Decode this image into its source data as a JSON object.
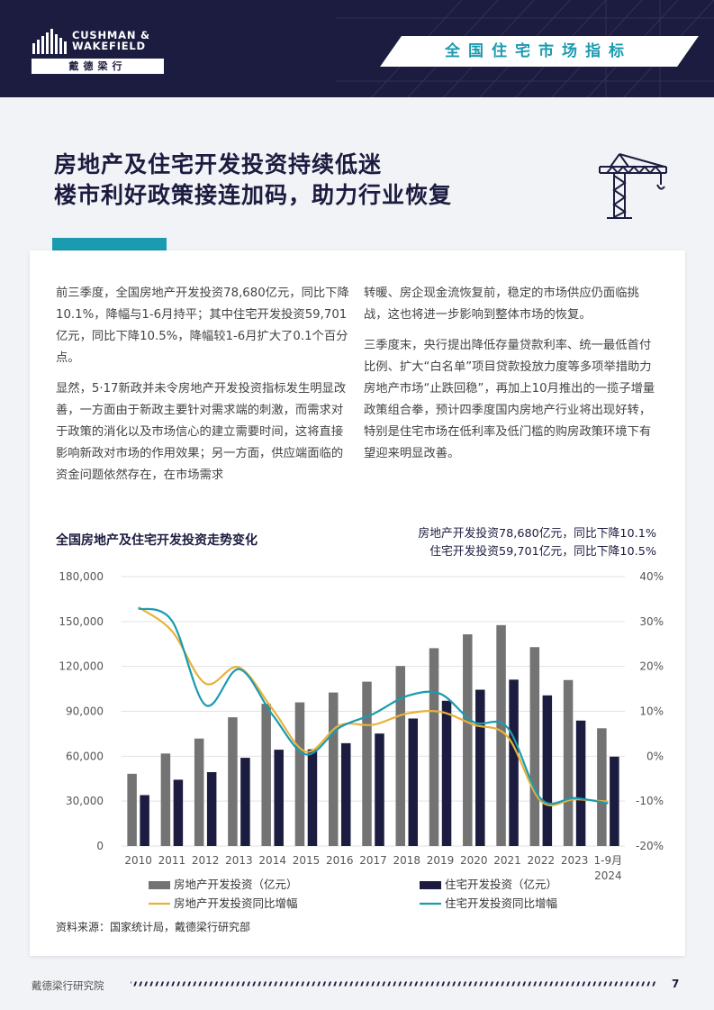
{
  "header": {
    "brand_line1": "CUSHMAN &",
    "brand_line2": "WAKEFIELD",
    "brand_cn": "戴德梁行",
    "section_tag": "全国住宅市场指标"
  },
  "title": {
    "line1": "房地产及住宅开发投资持续低迷",
    "line2": "楼市利好政策接连加码，助力行业恢复"
  },
  "body": {
    "left_p1": "前三季度，全国房地产开发投资78,680亿元，同比下降10.1%，降幅与1-6月持平；其中住宅开发投资59,701亿元，同比下降10.5%，降幅较1-6月扩大了0.1个百分点。",
    "left_p2": "显然，5·17新政并未令房地产开发投资指标发生明显改善，一方面由于新政主要针对需求端的刺激，而需求对于政策的消化以及市场信心的建立需要时间，这将直接影响新政对市场的作用效果；另一方面，供应端面临的资金问题依然存在，在市场需求",
    "right_p1": "转暖、房企现金流恢复前，稳定的市场供应仍面临挑战，这也将进一步影响到整体市场的恢复。",
    "right_p2": "三季度末，央行提出降低存量贷款利率、统一最低首付比例、扩大“白名单”项目贷款投放力度等多项举措助力房地产市场“止跌回稳”，再加上10月推出的一揽子增量政策组合拳，预计四季度国内房地产行业将出现好转，特别是住宅市场在低利率及低门槛的购房政策环境下有望迎来明显改善。"
  },
  "chart_note": {
    "line1": "房地产开发投资78,680亿元，同比下降10.1%",
    "line2": "住宅开发投资59,701亿元，同比下降10.5%"
  },
  "source": "资料来源：国家统计局，戴德梁行研究部",
  "footer": {
    "left": "戴德梁行研究院",
    "page": "7"
  },
  "colors": {
    "navy": "#1c1c40",
    "teal": "#1a9bb0",
    "gray_bar": "#737373",
    "gold_line": "#e8b13a"
  },
  "chart_data": {
    "type": "bar",
    "title": "全国房地产及住宅开发投资走势变化",
    "categories": [
      "2010",
      "2011",
      "2012",
      "2013",
      "2014",
      "2015",
      "2016",
      "2017",
      "2018",
      "2019",
      "2020",
      "2021",
      "2022",
      "2023",
      "1-9月 2024"
    ],
    "y_left": {
      "ticks": [
        "180,000",
        "150,000",
        "120,000",
        "90,000",
        "60,000",
        "30,000",
        "0"
      ],
      "ylim": [
        0,
        180000
      ]
    },
    "y_right": {
      "ticks": [
        "40%",
        "30%",
        "20%",
        "10%",
        "0%",
        "-10%",
        "-20%"
      ],
      "ylim": [
        -20,
        40
      ]
    },
    "series": [
      {
        "name": "房地产开发投资（亿元）",
        "type": "bar",
        "axis": "left",
        "color": "#737373",
        "values": [
          48267,
          61796,
          71804,
          86013,
          95036,
          95979,
          102581,
          109799,
          120264,
          132194,
          141443,
          147602,
          132895,
          110913,
          78680
        ]
      },
      {
        "name": "住宅开发投资（亿元）",
        "type": "bar",
        "axis": "left",
        "color": "#1c1c40",
        "values": [
          34026,
          44308,
          49374,
          58951,
          64352,
          64595,
          68704,
          75148,
          85192,
          97071,
          104446,
          111173,
          100646,
          83820,
          59701
        ]
      },
      {
        "name": "房地产开发投资同比增幅",
        "type": "line",
        "axis": "right",
        "color": "#e8b13a",
        "values": [
          33.2,
          27.9,
          16.2,
          19.8,
          10.5,
          1.0,
          6.9,
          7.0,
          9.5,
          9.9,
          7.0,
          4.4,
          -10.0,
          -9.6,
          -10.1
        ]
      },
      {
        "name": "住宅开发投资同比增幅",
        "type": "line",
        "axis": "right",
        "color": "#1a9bb0",
        "values": [
          32.9,
          30.2,
          11.4,
          19.4,
          9.2,
          0.4,
          6.4,
          9.4,
          13.4,
          13.9,
          7.6,
          6.4,
          -9.5,
          -9.3,
          -10.5
        ]
      }
    ],
    "legend": "bottom"
  }
}
